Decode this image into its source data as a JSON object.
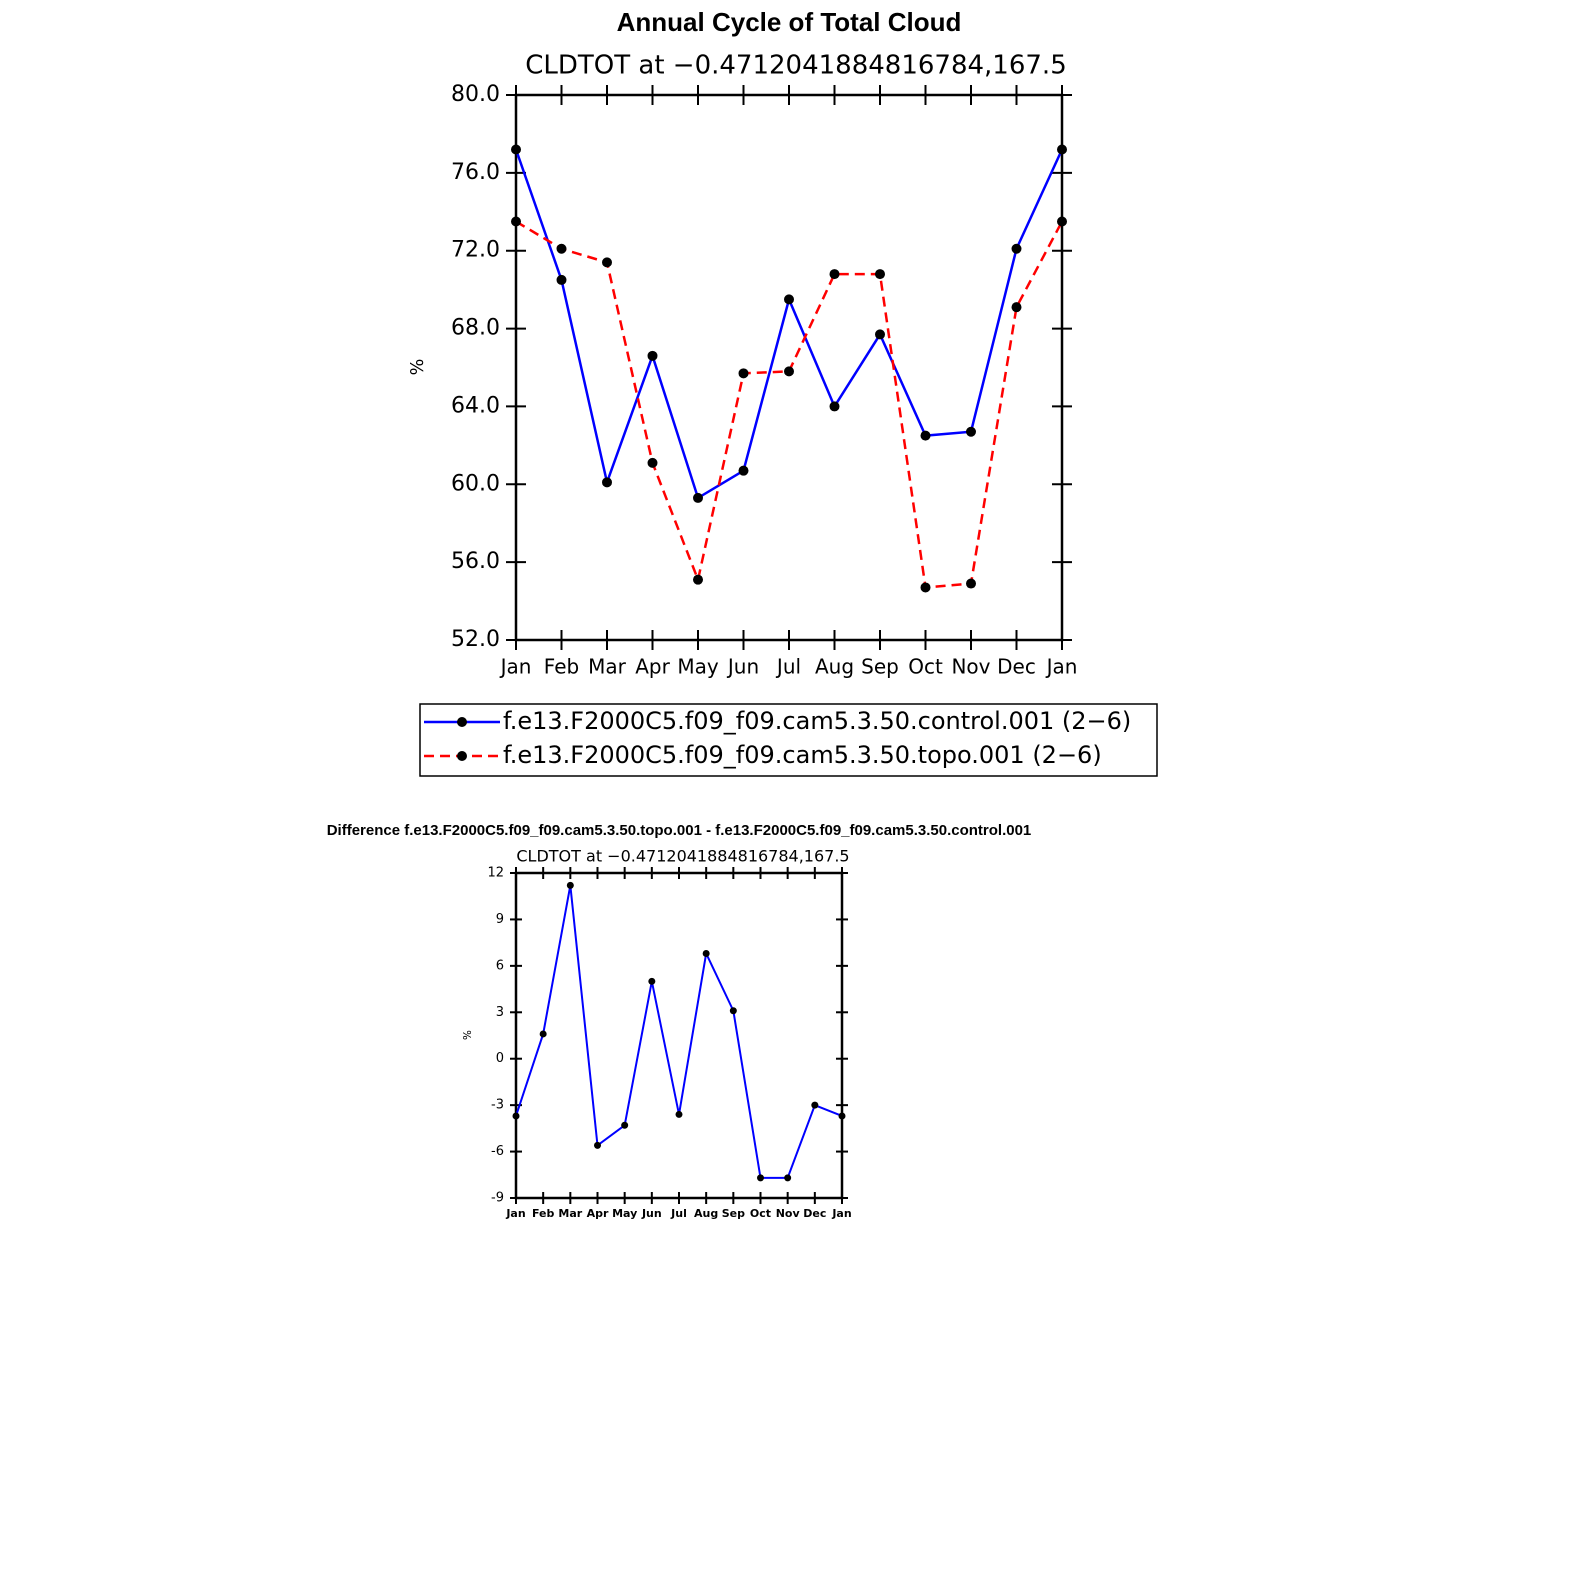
{
  "chart_data": [
    {
      "type": "line",
      "title": "Annual Cycle of Total Cloud",
      "subtitle": "CLDTOT at −0.4712041884816784,167.5",
      "y_label": "%",
      "categories": [
        "Jan",
        "Feb",
        "Mar",
        "Apr",
        "May",
        "Jun",
        "Jul",
        "Aug",
        "Sep",
        "Oct",
        "Nov",
        "Dec",
        "Jan"
      ],
      "series": [
        {
          "name": "f.e13.F2000C5.f09_f09.cam5.3.50.control.001 (2−6)",
          "color": "#0000ff",
          "dashed": false,
          "values": [
            77.2,
            70.5,
            60.1,
            66.6,
            59.3,
            60.7,
            69.5,
            64.0,
            67.7,
            62.5,
            62.7,
            72.1,
            77.2
          ]
        },
        {
          "name": "f.e13.F2000C5.f09_f09.cam5.3.50.topo.001 (2−6)",
          "color": "#ff0000",
          "dashed": true,
          "values": [
            73.5,
            72.1,
            71.4,
            61.1,
            55.1,
            65.7,
            65.8,
            70.8,
            70.8,
            54.7,
            54.9,
            69.1,
            73.5
          ]
        }
      ],
      "marker_color": "#000000",
      "ylim": [
        52,
        80
      ],
      "yticks": [
        {
          "value": 52,
          "label": "52.0"
        },
        {
          "value": 56,
          "label": "56.0"
        },
        {
          "value": 60,
          "label": "60.0"
        },
        {
          "value": 64,
          "label": "64.0"
        },
        {
          "value": 68,
          "label": "68.0"
        },
        {
          "value": 72,
          "label": "72.0"
        },
        {
          "value": 76,
          "label": "76.0"
        },
        {
          "value": 80,
          "label": "80.0"
        }
      ],
      "legend": "bottom"
    },
    {
      "type": "line",
      "title": "Difference f.e13.F2000C5.f09_f09.cam5.3.50.topo.001 - f.e13.F2000C5.f09_f09.cam5.3.50.control.001",
      "subtitle": "CLDTOT at −0.4712041884816784,167.5",
      "y_label": "%",
      "categories": [
        "Jan",
        "Feb",
        "Mar",
        "Apr",
        "May",
        "Jun",
        "Jul",
        "Aug",
        "Sep",
        "Oct",
        "Nov",
        "Dec",
        "Jan"
      ],
      "series": [
        {
          "color": "#0000ff",
          "dashed": false,
          "values": [
            -3.7,
            1.6,
            11.2,
            -5.6,
            -4.3,
            5.0,
            -3.6,
            6.8,
            3.1,
            -7.7,
            -7.7,
            -3.0,
            -3.7
          ]
        }
      ],
      "marker_color": "#000000",
      "ylim": [
        -9,
        12
      ],
      "yticks": [
        -9,
        -6,
        -3,
        0,
        3,
        6,
        9,
        12
      ]
    }
  ]
}
